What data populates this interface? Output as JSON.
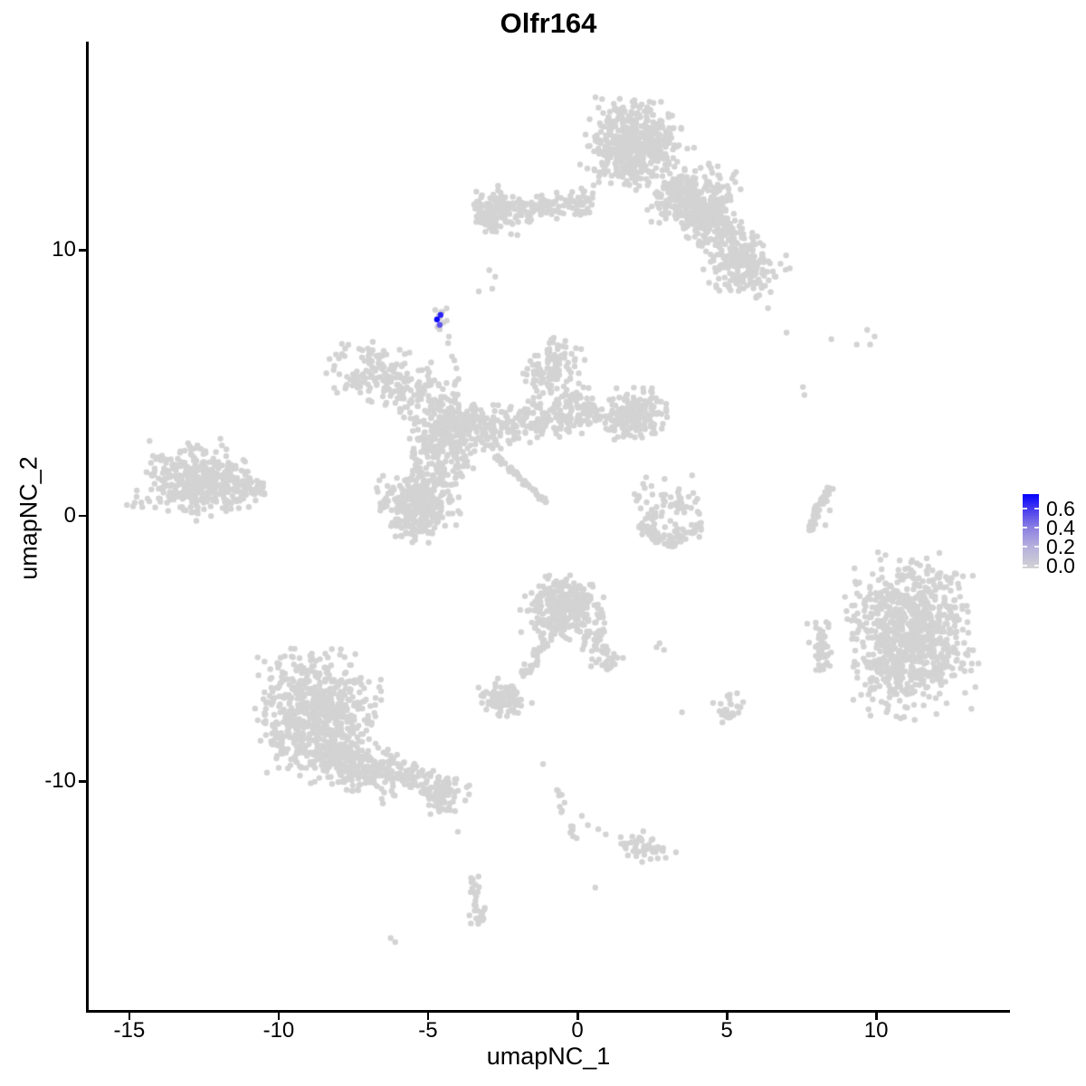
{
  "title": "Olfr164",
  "axes": {
    "x": {
      "label": "umapNC_1",
      "tick_labels": [
        "-15",
        "-10",
        "-5",
        "0",
        "5",
        "10"
      ],
      "tick_values": [
        -15,
        -10,
        -5,
        0,
        5,
        10
      ]
    },
    "y": {
      "label": "umapNC_2",
      "tick_labels": [
        "10",
        "0",
        "-10"
      ],
      "tick_values": [
        10,
        0,
        -10
      ]
    }
  },
  "legend": {
    "labels": [
      {
        "text": "0.6",
        "value": 0.6
      },
      {
        "text": "0.4",
        "value": 0.4
      },
      {
        "text": "0.2",
        "value": 0.2
      },
      {
        "text": "0.0",
        "value": 0.0
      }
    ]
  },
  "colors": {
    "point_gray": "#d3d3d3",
    "low": "#d3d3d3",
    "high": "#0000ff",
    "axis": "#000000",
    "gradient_stops": [
      [
        0,
        "#d3d3d3"
      ],
      [
        0.3,
        "#b4aedd"
      ],
      [
        0.55,
        "#8b80e2"
      ],
      [
        0.78,
        "#4c40ee"
      ],
      [
        1,
        "#0401fd"
      ]
    ]
  },
  "chart_data": {
    "type": "scatter",
    "title": "Olfr164",
    "xlabel": "umapNC_1",
    "ylabel": "umapNC_2",
    "xlim": [
      -16.39,
      14.45
    ],
    "ylim": [
      -18.61,
      17.82
    ],
    "grid": false,
    "legend_position": "right",
    "point_radius_px": 3.2,
    "color_scale": {
      "min": 0.0,
      "max": 0.7,
      "breaks": [
        0.0,
        0.2,
        0.4,
        0.6
      ]
    },
    "expressing_cells": [
      {
        "x": -4.58,
        "y": 7.56,
        "value": 0.62
      },
      {
        "x": -4.7,
        "y": 7.39,
        "value": 0.68
      },
      {
        "x": -4.61,
        "y": 7.19,
        "value": 0.5
      }
    ],
    "clusters": [
      {
        "name": "top-main-blob",
        "type": "gauss",
        "cx": 1.88,
        "cy": 13.97,
        "sx": 0.7,
        "sy": 0.78,
        "rot": -8,
        "n": 500
      },
      {
        "name": "top-right-lobe",
        "type": "gauss",
        "cx": 4.1,
        "cy": 11.9,
        "sx": 0.62,
        "sy": 0.72,
        "rot": -30,
        "n": 190
      },
      {
        "name": "top-diag-arm",
        "type": "band",
        "x1": 3.0,
        "y1": 12.4,
        "x2": 5.9,
        "y2": 9.4,
        "w": 0.42,
        "n": 360
      },
      {
        "name": "top-arm-tip",
        "type": "gauss",
        "cx": 5.7,
        "cy": 9.2,
        "sx": 0.6,
        "sy": 0.5,
        "rot": -20,
        "n": 120
      },
      {
        "name": "top-left-arm",
        "type": "band",
        "x1": -3.1,
        "y1": 11.3,
        "x2": 0.5,
        "y2": 11.9,
        "w": 0.26,
        "n": 150
      },
      {
        "name": "top-left-arm-end",
        "type": "gauss",
        "cx": -2.85,
        "cy": 11.5,
        "sx": 0.42,
        "sy": 0.4,
        "rot": 0,
        "n": 95
      },
      {
        "name": "sparse-below-arm",
        "type": "points",
        "pts": [
          [
            -2.95,
            9.25
          ],
          [
            -2.75,
            9.0
          ],
          [
            -2.85,
            8.55
          ],
          [
            -3.3,
            8.45
          ]
        ]
      },
      {
        "name": "olfr-blob-gray",
        "type": "gauss",
        "cx": -4.62,
        "cy": 7.38,
        "sx": 0.17,
        "sy": 0.28,
        "rot": 0,
        "n": 10
      },
      {
        "name": "olfr-trail",
        "type": "points",
        "pts": [
          [
            -4.3,
            6.75
          ],
          [
            -4.33,
            6.5
          ],
          [
            -4.2,
            6.0
          ],
          [
            -4.05,
            5.55
          ],
          [
            -3.98,
            5.15
          ],
          [
            -4.12,
            5.85
          ]
        ]
      },
      {
        "name": "mid-upper-left",
        "type": "gauss",
        "cx": -6.76,
        "cy": 5.28,
        "sx": 0.75,
        "sy": 0.5,
        "rot": -15,
        "n": 140
      },
      {
        "name": "mid-upper-left-b",
        "type": "gauss",
        "cx": -5.3,
        "cy": 4.6,
        "sx": 0.55,
        "sy": 0.45,
        "rot": 0,
        "n": 80
      },
      {
        "name": "central-node",
        "type": "gauss",
        "cx": -4.18,
        "cy": 3.34,
        "sx": 0.57,
        "sy": 0.52,
        "rot": 0,
        "n": 250
      },
      {
        "name": "central-arm",
        "type": "band",
        "x1": -3.2,
        "y1": 3.2,
        "x2": 0.6,
        "y2": 4.1,
        "w": 0.4,
        "n": 270
      },
      {
        "name": "central-arm-end",
        "type": "gauss",
        "cx": 1.88,
        "cy": 3.82,
        "sx": 0.5,
        "sy": 0.45,
        "rot": 0,
        "n": 185
      },
      {
        "name": "central-spur-up",
        "type": "gauss",
        "cx": -0.8,
        "cy": 5.5,
        "sx": 0.5,
        "sy": 0.58,
        "rot": 0,
        "n": 120
      },
      {
        "name": "central-lower-link",
        "type": "gauss",
        "cx": -4.6,
        "cy": 2.1,
        "sx": 0.5,
        "sy": 0.65,
        "rot": 0,
        "n": 120
      },
      {
        "name": "central-lower-blob",
        "type": "gauss",
        "cx": -5.33,
        "cy": 0.41,
        "sx": 0.58,
        "sy": 0.62,
        "rot": 12,
        "n": 330
      },
      {
        "name": "central-streak",
        "type": "band",
        "x1": -2.7,
        "y1": 2.2,
        "x2": -1.05,
        "y2": 0.5,
        "w": 0.05,
        "n": 55
      },
      {
        "name": "left-cluster",
        "type": "gauss",
        "cx": -12.8,
        "cy": 1.25,
        "sx": 0.9,
        "sy": 0.62,
        "rot": -8,
        "n": 390
      },
      {
        "name": "left-cluster-point",
        "type": "band",
        "x1": -11.5,
        "y1": 1.0,
        "x2": -10.5,
        "y2": 1.05,
        "w": 0.18,
        "n": 40
      },
      {
        "name": "left-cluster-tail",
        "type": "points",
        "pts": [
          [
            -11.95,
            2.9
          ],
          [
            -11.9,
            2.65
          ],
          [
            -12.1,
            2.4
          ],
          [
            -11.75,
            2.5
          ],
          [
            -14.75,
            0.95
          ],
          [
            -14.6,
            0.5
          ]
        ]
      },
      {
        "name": "mid-right-loose",
        "type": "gauss",
        "cx": 3.0,
        "cy": 0.35,
        "sx": 0.55,
        "sy": 0.55,
        "rot": 0,
        "n": 60
      },
      {
        "name": "mid-right-arc1",
        "type": "band",
        "x1": 2.1,
        "y1": -0.35,
        "x2": 3.0,
        "y2": -1.0,
        "w": 0.15,
        "n": 38
      },
      {
        "name": "mid-right-arc2",
        "type": "band",
        "x1": 3.0,
        "y1": -1.0,
        "x2": 4.25,
        "y2": -0.45,
        "w": 0.15,
        "n": 38
      },
      {
        "name": "mid-right-dots",
        "type": "points",
        "pts": [
          [
            2.2,
            1.2
          ],
          [
            2.05,
            0.75
          ],
          [
            2.3,
            1.45
          ]
        ]
      },
      {
        "name": "comma-streak-1",
        "type": "band",
        "x1": 7.78,
        "y1": -0.55,
        "x2": 8.05,
        "y2": 0.35,
        "w": 0.06,
        "n": 30
      },
      {
        "name": "comma-streak-2",
        "type": "band",
        "x1": 8.05,
        "y1": 0.35,
        "x2": 8.5,
        "y2": 1.1,
        "w": 0.06,
        "n": 28
      },
      {
        "name": "comma-dots",
        "type": "points",
        "pts": [
          [
            8.35,
            0.55
          ],
          [
            8.45,
            0.2
          ],
          [
            8.3,
            -0.35
          ]
        ]
      },
      {
        "name": "topright-sparse",
        "type": "points",
        "pts": [
          [
            7.0,
            6.9
          ],
          [
            8.5,
            6.65
          ],
          [
            9.35,
            6.45
          ],
          [
            9.7,
            7.0
          ],
          [
            9.95,
            6.75
          ],
          [
            9.8,
            6.45
          ],
          [
            7.55,
            4.85
          ],
          [
            7.6,
            4.55
          ]
        ]
      },
      {
        "name": "right-cluster",
        "type": "gauss",
        "cx": 11.15,
        "cy": -4.5,
        "sx": 0.95,
        "sy": 1.33,
        "rot": 0,
        "n": 860
      },
      {
        "name": "right-side-blob",
        "type": "band",
        "x1": 8.1,
        "y1": -4.0,
        "x2": 8.25,
        "y2": -5.8,
        "w": 0.2,
        "n": 45
      },
      {
        "name": "bottom-center",
        "type": "gauss",
        "cx": -0.48,
        "cy": -3.45,
        "sx": 0.6,
        "sy": 0.55,
        "rot": 0,
        "n": 320
      },
      {
        "name": "bottom-center-ext",
        "type": "band",
        "x1": 0.3,
        "y1": -4.4,
        "x2": 1.15,
        "y2": -5.7,
        "w": 0.26,
        "n": 55
      },
      {
        "name": "bottom-center-trail",
        "type": "band",
        "x1": -1.05,
        "y1": -4.7,
        "x2": -1.85,
        "y2": -6.1,
        "w": 0.1,
        "n": 35
      },
      {
        "name": "small-blob-mid",
        "type": "gauss",
        "cx": -2.45,
        "cy": -6.95,
        "sx": 0.45,
        "sy": 0.35,
        "rot": -10,
        "n": 85
      },
      {
        "name": "bottom-left-cluster",
        "type": "gauss",
        "cx": -8.67,
        "cy": -7.5,
        "sx": 0.9,
        "sy": 1.1,
        "rot": 0,
        "n": 640
      },
      {
        "name": "bottom-left-lower",
        "type": "gauss",
        "cx": -7.4,
        "cy": -9.4,
        "sx": 0.8,
        "sy": 0.45,
        "rot": -20,
        "n": 230
      },
      {
        "name": "bottom-left-tail",
        "type": "band",
        "x1": -6.6,
        "y1": -9.3,
        "x2": -4.4,
        "y2": -10.55,
        "w": 0.32,
        "n": 120
      },
      {
        "name": "bottom-left-tail-end",
        "type": "gauss",
        "cx": -4.35,
        "cy": -10.5,
        "sx": 0.33,
        "sy": 0.33,
        "rot": 0,
        "n": 40
      },
      {
        "name": "chain-down",
        "type": "band",
        "x1": -0.65,
        "y1": -10.25,
        "x2": -0.05,
        "y2": -12.2,
        "w": 0.1,
        "n": 16
      },
      {
        "name": "chain-dots",
        "type": "points",
        "pts": [
          [
            0.35,
            -11.65
          ],
          [
            0.7,
            -11.8
          ],
          [
            0.95,
            -12.0
          ],
          [
            1.45,
            -12.1
          ],
          [
            0.15,
            -11.3
          ],
          [
            -1.15,
            -9.35
          ],
          [
            0.6,
            -14.0
          ]
        ]
      },
      {
        "name": "bottom-small-blob",
        "type": "gauss",
        "cx": 2.3,
        "cy": -12.55,
        "sx": 0.45,
        "sy": 0.28,
        "rot": -20,
        "n": 42
      },
      {
        "name": "small-pair",
        "type": "points",
        "pts": [
          [
            2.65,
            -4.95
          ],
          [
            2.9,
            -5.05
          ],
          [
            2.75,
            -4.8
          ]
        ]
      },
      {
        "name": "small-blob-right",
        "type": "gauss",
        "cx": 5.0,
        "cy": -7.3,
        "sx": 0.27,
        "sy": 0.3,
        "rot": 0,
        "n": 26
      },
      {
        "name": "lone-dots",
        "type": "points",
        "pts": [
          [
            3.5,
            -7.4
          ],
          [
            -4.0,
            -11.9
          ],
          [
            -6.25,
            -15.9
          ],
          [
            -6.1,
            -16.05
          ],
          [
            -6.85,
            6.55
          ],
          [
            -5.95,
            6.25
          ]
        ]
      },
      {
        "name": "bottom-tiny-cluster",
        "type": "band",
        "x1": -3.55,
        "y1": -13.6,
        "x2": -3.25,
        "y2": -15.2,
        "w": 0.12,
        "n": 24
      },
      {
        "name": "bottom-tiny-end",
        "type": "gauss",
        "cx": -3.35,
        "cy": -15.05,
        "sx": 0.18,
        "sy": 0.2,
        "rot": 0,
        "n": 12
      }
    ]
  }
}
